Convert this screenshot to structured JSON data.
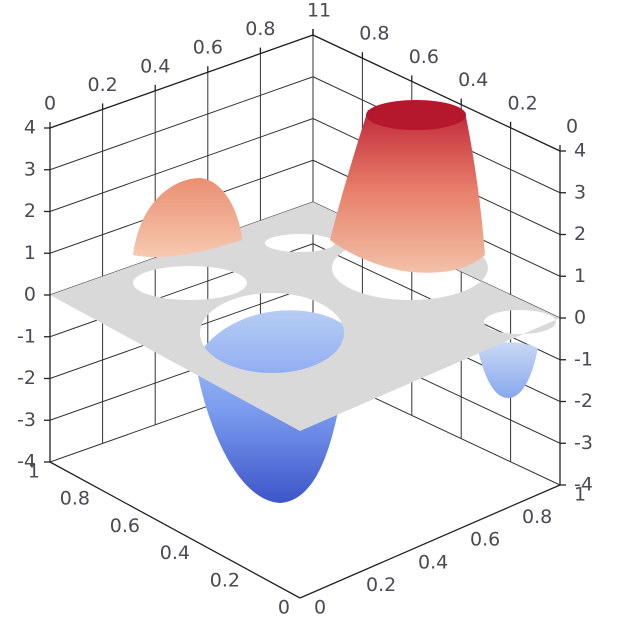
{
  "chart_data": {
    "type": "surface3d",
    "xlim": [
      0,
      1
    ],
    "ylim": [
      0,
      1
    ],
    "zlim": [
      -4,
      4
    ],
    "xticks": [
      0,
      0.2,
      0.4,
      0.6,
      0.8,
      1
    ],
    "yticks": [
      0,
      0.2,
      0.4,
      0.6,
      0.8,
      1
    ],
    "zticks": [
      -4,
      -3,
      -2,
      -1,
      0,
      1,
      2,
      3,
      4
    ],
    "grid": true
  }
}
